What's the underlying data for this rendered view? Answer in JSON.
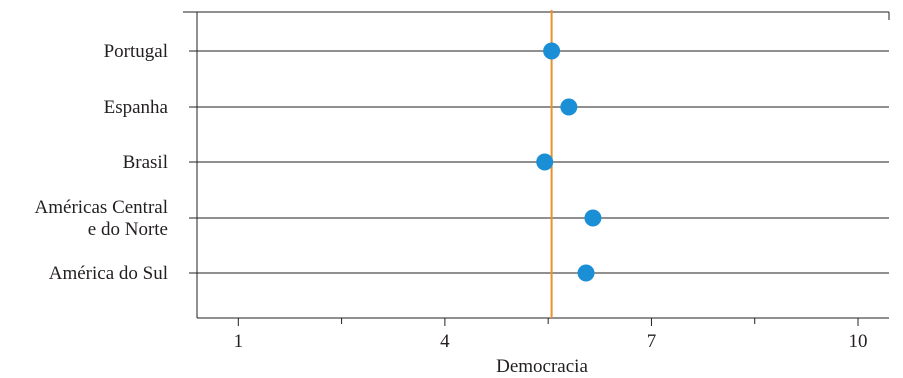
{
  "chart_data": {
    "type": "scatter",
    "categories": [
      "Portugal",
      "Espanha",
      "Brasil",
      "Américas Central e do Norte",
      "América do Sul"
    ],
    "category_label_lines": [
      [
        "Portugal"
      ],
      [
        "Espanha"
      ],
      [
        "Brasil"
      ],
      [
        "Américas Central",
        "e do Norte"
      ],
      [
        "América do Sul"
      ]
    ],
    "values": [
      5.55,
      5.8,
      5.45,
      6.15,
      6.05
    ],
    "reference_line": 5.55,
    "xlabel": "Democracia",
    "ylabel": "",
    "title": "",
    "xlim": [
      0.4,
      10.45
    ],
    "xticks": [
      1,
      4,
      7,
      10
    ],
    "minor_xticks": [
      2.5,
      5.5,
      8.5
    ],
    "grid": "horizontal lines per category",
    "legend": "none",
    "colors": {
      "point": "#1b8fd6",
      "reference_line": "#e8922a",
      "axis": "#231f20",
      "text": "#231f20"
    }
  }
}
